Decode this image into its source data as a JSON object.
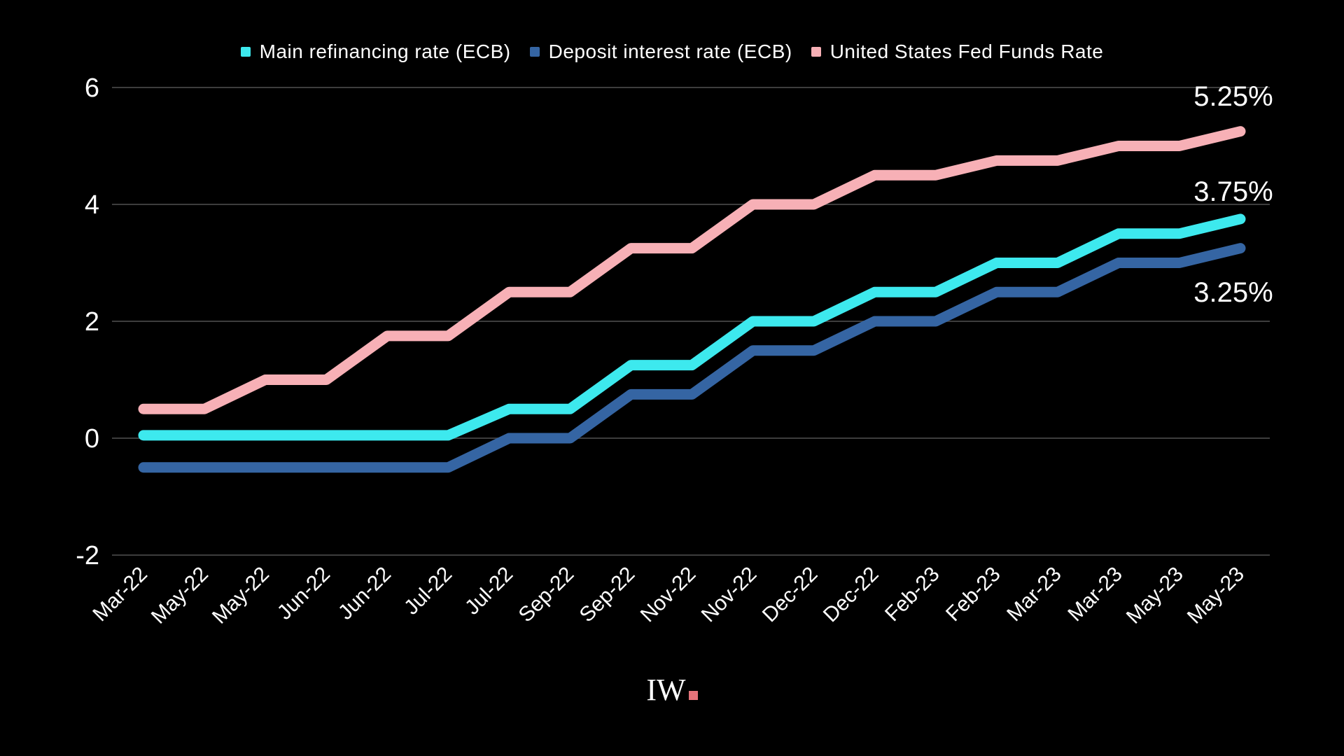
{
  "page": {
    "background_color": "#000000",
    "text_color": "#ffffff"
  },
  "legend": [
    {
      "label": "Main refinancing rate (ECB)",
      "color": "#3de9ee",
      "icon": "square-swatch"
    },
    {
      "label": "Deposit interest rate (ECB)",
      "color": "#3565a3",
      "icon": "square-swatch"
    },
    {
      "label": "United States Fed Funds Rate",
      "color": "#f7b0b6",
      "icon": "square-swatch"
    }
  ],
  "footer": {
    "logo_text": "IW",
    "logo_dot_color": "#e5737a"
  },
  "chart_data": {
    "type": "line",
    "title": "",
    "xlabel": "",
    "ylabel": "",
    "grid": true,
    "grid_color": "#3d3d3d",
    "legend_position": "top",
    "ylim": [
      -2,
      6
    ],
    "yticks": [
      6,
      4,
      2,
      0,
      -2
    ],
    "categories": [
      "Mar-22",
      "May-22",
      "May-22",
      "Jun-22",
      "Jun-22",
      "Jul-22",
      "Jul-22",
      "Sep-22",
      "Sep-22",
      "Nov-22",
      "Nov-22",
      "Dec-22",
      "Dec-22",
      "Feb-23",
      "Feb-23",
      "Mar-23",
      "Mar-23",
      "May-23",
      "May-23"
    ],
    "series": [
      {
        "name": "Main refinancing rate (ECB)",
        "color": "#3de9ee",
        "end_label": "3.75%",
        "values": [
          0.05,
          0.05,
          0.05,
          0.05,
          0.05,
          0.05,
          0.5,
          0.5,
          1.25,
          1.25,
          2,
          2,
          2.5,
          2.5,
          3,
          3,
          3.5,
          3.5,
          3.75
        ]
      },
      {
        "name": "Deposit interest rate (ECB)",
        "color": "#3565a3",
        "end_label": "3.25%",
        "values": [
          -0.5,
          -0.5,
          -0.5,
          -0.5,
          -0.5,
          -0.5,
          0,
          0,
          0.75,
          0.75,
          1.5,
          1.5,
          2,
          2,
          2.5,
          2.5,
          3,
          3,
          3.25
        ]
      },
      {
        "name": "United States Fed Funds Rate",
        "color": "#f7b0b6",
        "end_label": "5.25%",
        "values": [
          0.5,
          0.5,
          1,
          1,
          1.75,
          1.75,
          2.5,
          2.5,
          3.25,
          3.25,
          4,
          4,
          4.5,
          4.5,
          4.75,
          4.75,
          5,
          5,
          5.25
        ]
      }
    ]
  }
}
